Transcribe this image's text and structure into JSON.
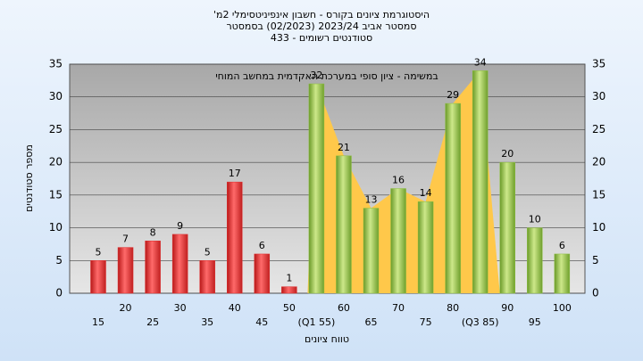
{
  "chart_data": {
    "type": "bar",
    "title": [
      "היסטוגרמת ציונים בקורס - חשבון אינפיניטסימלי 2מ'",
      "סמסטר אביב 2023/24 (02/2023) בסמסטר",
      "סטודנטים רשומים - 433"
    ],
    "annotation": "במשימה - ציון סופי במערכת האקדמית במחשב המוחי",
    "y_label": "מספר סטודנטים",
    "x_label": "טווח ציונים",
    "categories": [
      "15",
      "20",
      "25",
      "30",
      "35",
      "40",
      "45",
      "50",
      "(Q1 55)",
      "60",
      "65",
      "70",
      "75",
      "80",
      "(Q3 85)",
      "90",
      "95",
      "100"
    ],
    "values": [
      5,
      7,
      8,
      9,
      5,
      17,
      6,
      1,
      32,
      21,
      13,
      16,
      14,
      29,
      34,
      20,
      10,
      6
    ],
    "colors": [
      "#e03030",
      "#e03030",
      "#e03030",
      "#e03030",
      "#e03030",
      "#e03030",
      "#e03030",
      "#e03030",
      "#8cbf40",
      "#8cbf40",
      "#8cbf40",
      "#8cbf40",
      "#8cbf40",
      "#8cbf40",
      "#8cbf40",
      "#8cbf40",
      "#8cbf40",
      "#8cbf40"
    ],
    "quartile_band_color": "#ffc84a",
    "ylim": [
      0,
      35
    ],
    "yticks": [
      0,
      5,
      10,
      15,
      20,
      25,
      30,
      35
    ],
    "grid": true
  }
}
